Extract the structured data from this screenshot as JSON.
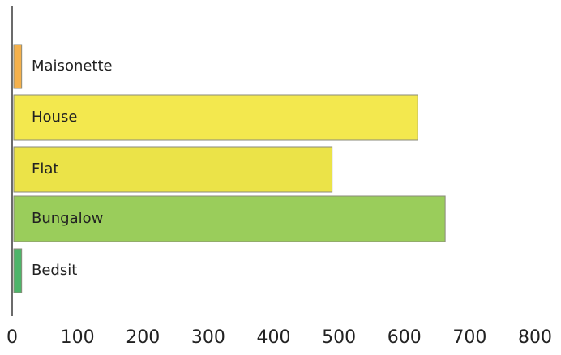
{
  "chart_data": {
    "type": "bar",
    "orientation": "horizontal",
    "categories": [
      "Maisonette",
      "House",
      "Flat",
      "Bungalow",
      "Bedsit"
    ],
    "values": [
      12,
      618,
      487,
      660,
      12
    ],
    "colors": [
      "#f5b14c",
      "#f3e84e",
      "#ebe348",
      "#9acd5b",
      "#4db56a"
    ],
    "xlim": [
      0,
      800
    ],
    "x_ticks": [
      "0",
      "100",
      "200",
      "300",
      "400",
      "500",
      "600",
      "700",
      "800"
    ],
    "title": "",
    "xlabel": "",
    "ylabel": "",
    "grid": false,
    "legend": "none"
  }
}
